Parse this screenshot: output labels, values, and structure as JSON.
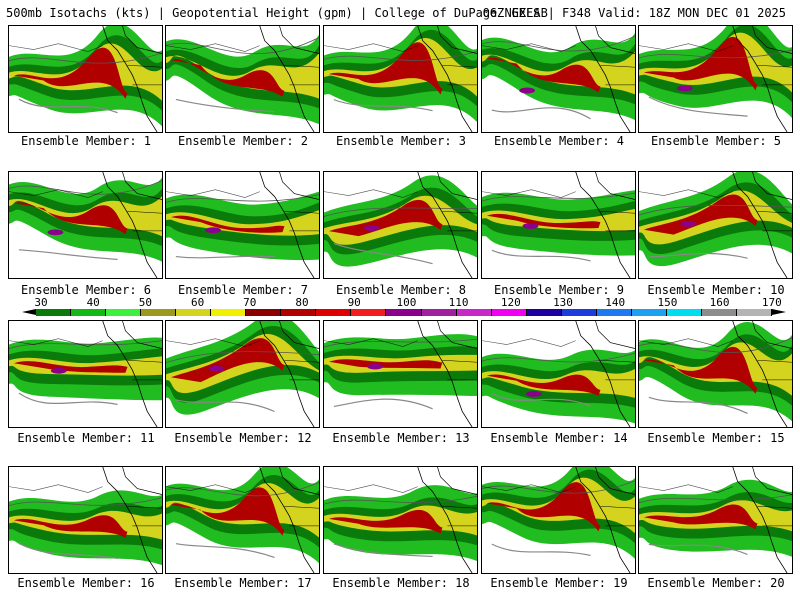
{
  "header": {
    "left": "500mb Isotachs (kts) | Geopotential Height (gpm) | College of DuPage NEXLAB",
    "right": "06Z GEFS | F348 Valid: 18Z MON DEC 01 2025"
  },
  "colorbar": {
    "labels": [
      "30",
      "40",
      "50",
      "60",
      "70",
      "80",
      "90",
      "100",
      "110",
      "120",
      "130",
      "140",
      "150",
      "160",
      "170"
    ],
    "colors": [
      "#0a7a0a",
      "#14b814",
      "#3cf03c",
      "#9a9a1e",
      "#d4d41e",
      "#f0f000",
      "#8b0000",
      "#b00000",
      "#dc0000",
      "#f01e1e",
      "#8b008b",
      "#a020a0",
      "#c828c8",
      "#f000f0",
      "#1e00a0",
      "#1e3cdc",
      "#1e78f0",
      "#1ea0f0",
      "#00dcf0",
      "#8c8c8c",
      "#b4b4b4"
    ]
  },
  "members": [
    {
      "label": "Ensemble Member: 1"
    },
    {
      "label": "Ensemble Member: 2"
    },
    {
      "label": "Ensemble Member: 3"
    },
    {
      "label": "Ensemble Member: 4"
    },
    {
      "label": "Ensemble Member: 5"
    },
    {
      "label": "Ensemble Member: 6"
    },
    {
      "label": "Ensemble Member: 7"
    },
    {
      "label": "Ensemble Member: 8"
    },
    {
      "label": "Ensemble Member: 9"
    },
    {
      "label": "Ensemble Member: 10"
    },
    {
      "label": "Ensemble Member: 11"
    },
    {
      "label": "Ensemble Member: 12"
    },
    {
      "label": "Ensemble Member: 13"
    },
    {
      "label": "Ensemble Member: 14"
    },
    {
      "label": "Ensemble Member: 15"
    },
    {
      "label": "Ensemble Member: 16"
    },
    {
      "label": "Ensemble Member: 17"
    },
    {
      "label": "Ensemble Member: 18"
    },
    {
      "label": "Ensemble Member: 19"
    },
    {
      "label": "Ensemble Member: 20"
    }
  ]
}
